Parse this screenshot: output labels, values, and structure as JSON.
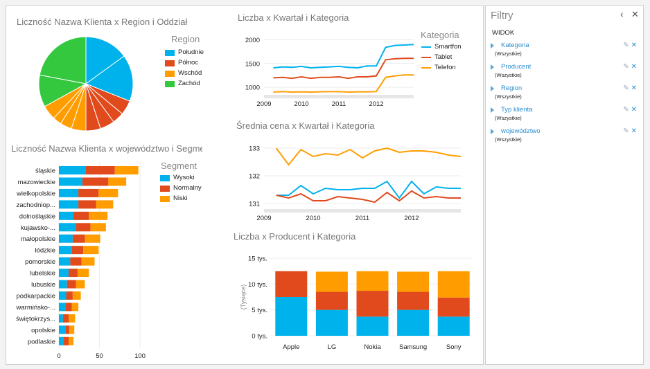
{
  "filters_panel": {
    "title": "Filtry",
    "section": "WIDOK",
    "collapse_icon": "chevron-left-icon",
    "close_icon": "close-icon",
    "items": [
      {
        "name": "Kategoria",
        "value": "(Wszystkie)"
      },
      {
        "name": "Producent",
        "value": "(Wszystkie)"
      },
      {
        "name": "Region",
        "value": "(Wszystkie)"
      },
      {
        "name": "Typ klienta",
        "value": "(Wszystkie)"
      },
      {
        "name": "województwo",
        "value": "(Wszystkie)"
      }
    ],
    "item_icons": [
      "pencil-icon",
      "clear-filter-icon"
    ]
  },
  "colors": {
    "blue": "#00b2ec",
    "red": "#e04a1c",
    "orange": "#ff9d00",
    "green": "#34c83f"
  },
  "chart_data": [
    {
      "id": "pie",
      "type": "pie",
      "title": "Liczność Nazwa Klienta x Region i Oddział",
      "legend_title": "Region",
      "legend": [
        {
          "name": "Południe",
          "color": "#00b2ec"
        },
        {
          "name": "Północ",
          "color": "#e04a1c"
        },
        {
          "name": "Wschód",
          "color": "#ff9d00"
        },
        {
          "name": "Zachód",
          "color": "#34c83f"
        }
      ],
      "slices": [
        {
          "region": "Południe",
          "value": 15
        },
        {
          "region": "Południe",
          "value": 16
        },
        {
          "region": "Północ",
          "value": 5
        },
        {
          "region": "Północ",
          "value": 4
        },
        {
          "region": "Północ",
          "value": 5
        },
        {
          "region": "Północ",
          "value": 5
        },
        {
          "region": "Wschód",
          "value": 5
        },
        {
          "region": "Wschód",
          "value": 4
        },
        {
          "region": "Wschód",
          "value": 3
        },
        {
          "region": "Wschód",
          "value": 5
        },
        {
          "region": "Zachód",
          "value": 11
        },
        {
          "region": "Zachód",
          "value": 22
        }
      ]
    },
    {
      "id": "bars",
      "type": "bar",
      "orientation": "horizontal",
      "stacked": true,
      "title": "Liczność Nazwa Klienta x województwo i Segment",
      "legend_title": "Segment",
      "categories": [
        "śląskie",
        "mazowieckie",
        "wielkopolskie",
        "zachodniop...",
        "dolnośląskie",
        "kujawsko-...",
        "małopolskie",
        "łódzkie",
        "pomorskie",
        "lubelskie",
        "lubuskie",
        "podkarpackie",
        "warmińsko-...",
        "świętokrzys...",
        "opolskie",
        "podlaskie"
      ],
      "series": [
        {
          "name": "Wysoki",
          "color": "#00b2ec",
          "values": [
            33,
            29,
            24,
            24,
            18,
            21,
            17,
            16,
            14,
            12,
            10,
            9,
            8,
            5,
            8,
            6
          ]
        },
        {
          "name": "Normalny",
          "color": "#e04a1c",
          "values": [
            36,
            32,
            25,
            22,
            19,
            18,
            15,
            14,
            14,
            11,
            11,
            8,
            8,
            7,
            5,
            6
          ]
        },
        {
          "name": "Niski",
          "color": "#ff9d00",
          "values": [
            29,
            22,
            24,
            21,
            23,
            19,
            19,
            19,
            16,
            14,
            11,
            10,
            8,
            8,
            6,
            6
          ]
        }
      ],
      "xlim": [
        0,
        100
      ],
      "xticks": [
        "0",
        "50",
        "100"
      ]
    },
    {
      "id": "count_line",
      "type": "line",
      "title": "Liczba x Kwartał i Kategoria",
      "legend_title": "Kategoria",
      "x": [
        2009.25,
        2009.5,
        2009.75,
        2010,
        2010.25,
        2010.5,
        2010.75,
        2011,
        2011.25,
        2011.5,
        2011.75,
        2012,
        2012.25,
        2012.5,
        2012.75,
        2013
      ],
      "series": [
        {
          "name": "Smartfon",
          "color": "#00b2ec",
          "values": [
            1410,
            1430,
            1420,
            1440,
            1410,
            1420,
            1430,
            1440,
            1420,
            1410,
            1450,
            1450,
            1840,
            1880,
            1890,
            1900
          ]
        },
        {
          "name": "Tablet",
          "color": "#e04a1c",
          "values": [
            1200,
            1210,
            1190,
            1220,
            1190,
            1210,
            1210,
            1220,
            1190,
            1220,
            1220,
            1240,
            1580,
            1600,
            1610,
            1610
          ]
        },
        {
          "name": "Telefon",
          "color": "#ff9d00",
          "values": [
            900,
            910,
            900,
            905,
            900,
            905,
            910,
            910,
            900,
            905,
            905,
            910,
            1210,
            1240,
            1260,
            1260
          ]
        }
      ],
      "ylim": [
        900,
        2050
      ],
      "yticks": [
        "1000",
        "1500",
        "2000"
      ],
      "xticks": [
        "2009",
        "2010",
        "2011",
        "2012"
      ]
    },
    {
      "id": "price_line",
      "type": "line",
      "title": "Średnia cena x Kwartał i Kategoria",
      "x": [
        2009.25,
        2009.5,
        2009.75,
        2010,
        2010.25,
        2010.5,
        2010.75,
        2011,
        2011.25,
        2011.5,
        2011.75,
        2012,
        2012.25,
        2012.5,
        2012.75,
        2013
      ],
      "series": [
        {
          "name": "Telefon",
          "color": "#ff9d00",
          "values": [
            133.0,
            132.4,
            132.95,
            132.7,
            132.8,
            132.75,
            132.95,
            132.65,
            132.9,
            133.0,
            132.85,
            132.9,
            132.9,
            132.85,
            132.75,
            132.7
          ]
        },
        {
          "name": "Smartfon",
          "color": "#00b2ec",
          "values": [
            131.3,
            131.3,
            131.65,
            131.35,
            131.55,
            131.5,
            131.5,
            131.55,
            131.55,
            131.8,
            131.2,
            131.8,
            131.35,
            131.6,
            131.55,
            131.55
          ]
        },
        {
          "name": "Tablet",
          "color": "#e04a1c",
          "values": [
            131.3,
            131.2,
            131.35,
            131.1,
            131.1,
            131.25,
            131.2,
            131.15,
            131.05,
            131.4,
            131.1,
            131.45,
            131.2,
            131.25,
            131.2,
            131.2
          ]
        }
      ],
      "ylim": [
        130.9,
        133.1
      ],
      "yticks": [
        "131",
        "132",
        "133"
      ],
      "xticks": [
        "2009",
        "2010",
        "2011",
        "2012"
      ]
    },
    {
      "id": "column",
      "type": "bar",
      "orientation": "vertical",
      "stacked": true,
      "title": "Liczba x Producent i Kategoria",
      "ylabel": "(Tysiące)",
      "categories": [
        "Apple",
        "LG",
        "Nokia",
        "Samsung",
        "Sony"
      ],
      "series": [
        {
          "name": "Smartfon",
          "color": "#00b2ec",
          "values": [
            7.5,
            5.0,
            3.7,
            5.0,
            3.7
          ]
        },
        {
          "name": "Tablet",
          "color": "#e04a1c",
          "values": [
            5.0,
            3.5,
            5.0,
            3.5,
            3.7
          ]
        },
        {
          "name": "Telefon",
          "color": "#ff9d00",
          "values": [
            0,
            3.9,
            3.8,
            3.9,
            5.1
          ]
        }
      ],
      "ylim": [
        0,
        15
      ],
      "yticks": [
        "0 tys.",
        "5 tys.",
        "10 tys.",
        "15 tys."
      ]
    }
  ]
}
